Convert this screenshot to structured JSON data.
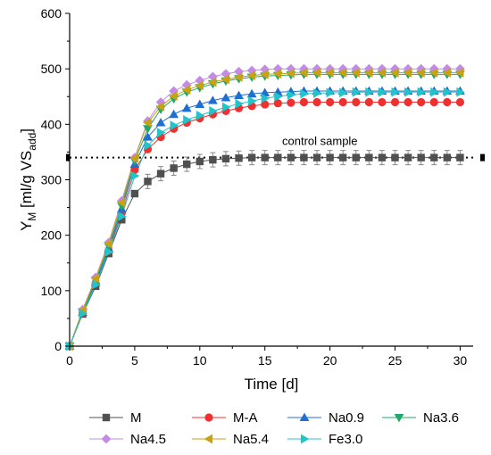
{
  "chart_data": {
    "type": "line",
    "xlabel": "Time [d]",
    "ylabel_main": "Y",
    "ylabel_sub": "M",
    "ylabel_unit": "[ml/g VS",
    "ylabel_unit_sub": "add",
    "ylabel_close": "]",
    "xlim": [
      0,
      31
    ],
    "ylim": [
      0,
      600
    ],
    "xticks": [
      0,
      5,
      10,
      15,
      20,
      25,
      30
    ],
    "yticks": [
      0,
      100,
      200,
      300,
      400,
      500,
      600
    ],
    "x": [
      0,
      1,
      2,
      3,
      4,
      5,
      6,
      7,
      8,
      9,
      10,
      11,
      12,
      13,
      14,
      15,
      16,
      17,
      18,
      19,
      20,
      21,
      22,
      23,
      24,
      25,
      26,
      27,
      28,
      29,
      30
    ],
    "series": [
      {
        "name": "M",
        "color": "#505050",
        "marker": "square",
        "values": [
          0,
          58,
          108,
          167,
          228,
          275,
          297,
          311,
          321,
          328,
          333,
          336,
          338,
          339,
          340,
          340,
          340,
          340,
          340,
          340,
          340,
          340,
          340,
          340,
          340,
          340,
          340,
          340,
          340,
          340,
          340
        ]
      },
      {
        "name": "M-A",
        "color": "#ee3030",
        "marker": "circle",
        "values": [
          0,
          60,
          113,
          172,
          240,
          318,
          355,
          377,
          392,
          403,
          411,
          418,
          424,
          429,
          433,
          436,
          438,
          439,
          440,
          440,
          440,
          440,
          440,
          440,
          440,
          440,
          440,
          440,
          440,
          440,
          440
        ]
      },
      {
        "name": "Na0.9",
        "color": "#1f6fd1",
        "marker": "triangle-up",
        "values": [
          0,
          61,
          115,
          175,
          247,
          328,
          377,
          403,
          418,
          429,
          436,
          443,
          448,
          452,
          455,
          457,
          458,
          459,
          460,
          460,
          460,
          460,
          460,
          460,
          460,
          460,
          460,
          460,
          460,
          460,
          460
        ]
      },
      {
        "name": "Na3.6",
        "color": "#21a86a",
        "marker": "triangle-down",
        "values": [
          0,
          62,
          119,
          180,
          253,
          334,
          392,
          427,
          446,
          458,
          466,
          473,
          478,
          482,
          485,
          487,
          488,
          489,
          490,
          490,
          490,
          490,
          490,
          490,
          490,
          490,
          490,
          490,
          490,
          490,
          490
        ]
      },
      {
        "name": "Na4.5",
        "color": "#c48be6",
        "marker": "diamond",
        "values": [
          0,
          66,
          124,
          187,
          262,
          340,
          406,
          440,
          460,
          471,
          479,
          486,
          491,
          495,
          497,
          499,
          500,
          500,
          500,
          500,
          500,
          500,
          500,
          500,
          500,
          500,
          500,
          500,
          500,
          500,
          500
        ]
      },
      {
        "name": "Na5.4",
        "color": "#c9a213",
        "marker": "triangle-left",
        "values": [
          0,
          65,
          122,
          185,
          259,
          339,
          403,
          432,
          451,
          462,
          470,
          476,
          481,
          485,
          488,
          490,
          491,
          492,
          493,
          493,
          493,
          493,
          493,
          493,
          493,
          493,
          493,
          493,
          493,
          493,
          493
        ]
      },
      {
        "name": "Fe3.0",
        "color": "#21c5c9",
        "marker": "triangle-right",
        "values": [
          0,
          59,
          111,
          170,
          234,
          307,
          362,
          385,
          398,
          408,
          416,
          424,
          431,
          437,
          442,
          447,
          450,
          453,
          455,
          456,
          457,
          457,
          458,
          458,
          458,
          458,
          458,
          458,
          458,
          458,
          458
        ]
      }
    ],
    "reference_line": {
      "y": 340,
      "label": "control sample",
      "style": "dotted"
    },
    "legend_position": "bottom"
  }
}
